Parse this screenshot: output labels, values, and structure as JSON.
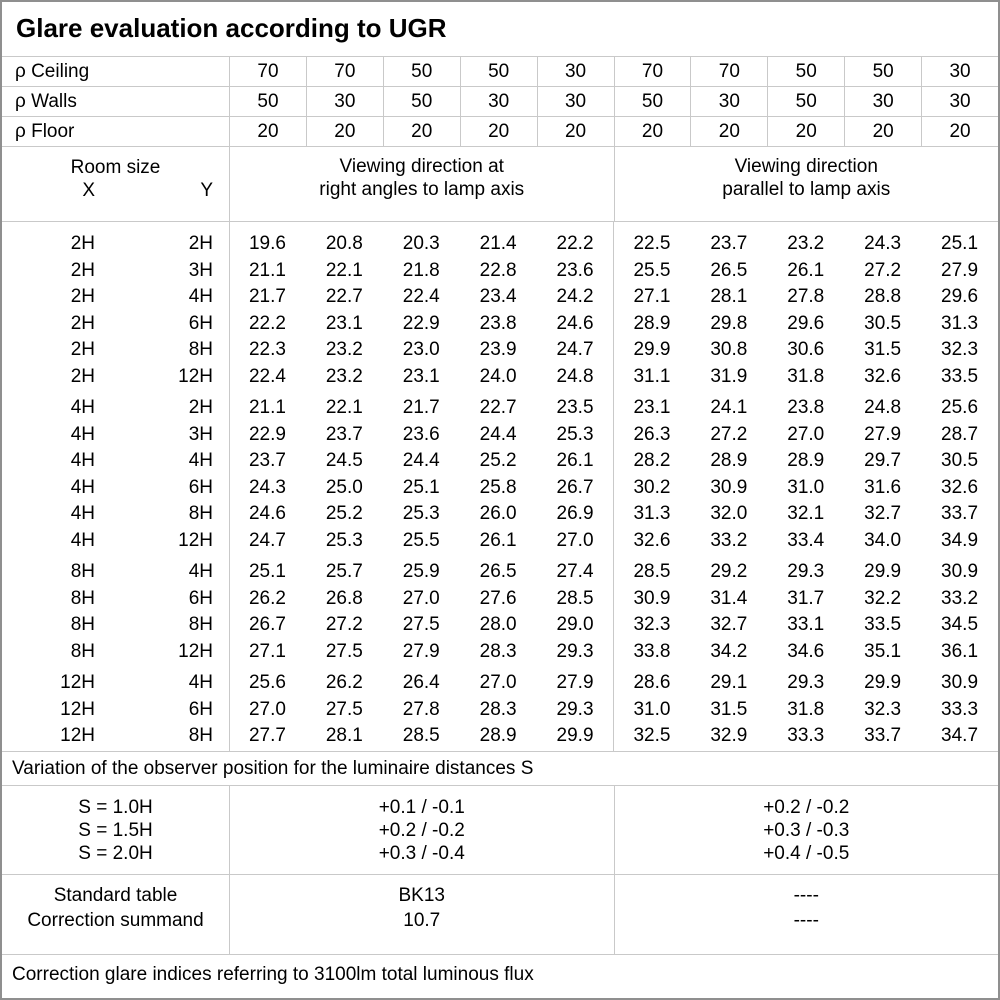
{
  "title": "Glare evaluation according to UGR",
  "reflectances": {
    "rows": [
      {
        "label": "ρ Ceiling",
        "values": [
          "70",
          "70",
          "50",
          "50",
          "30",
          "70",
          "70",
          "50",
          "50",
          "30"
        ]
      },
      {
        "label": "ρ Walls",
        "values": [
          "50",
          "30",
          "50",
          "30",
          "30",
          "50",
          "30",
          "50",
          "30",
          "30"
        ]
      },
      {
        "label": "ρ Floor",
        "values": [
          "20",
          "20",
          "20",
          "20",
          "20",
          "20",
          "20",
          "20",
          "20",
          "20"
        ]
      }
    ]
  },
  "room_size_header": {
    "title": "Room size",
    "x": "X",
    "y": "Y"
  },
  "viewing_headers": {
    "right_angles": {
      "line1": "Viewing direction at",
      "line2": "right angles to lamp axis"
    },
    "parallel": {
      "line1": "Viewing direction",
      "line2": "parallel to lamp axis"
    }
  },
  "ugr_blocks": [
    {
      "rows": [
        {
          "x": "2H",
          "y": "2H",
          "right_angles": [
            "19.6",
            "20.8",
            "20.3",
            "21.4",
            "22.2"
          ],
          "parallel": [
            "22.5",
            "23.7",
            "23.2",
            "24.3",
            "25.1"
          ]
        },
        {
          "x": "2H",
          "y": "3H",
          "right_angles": [
            "21.1",
            "22.1",
            "21.8",
            "22.8",
            "23.6"
          ],
          "parallel": [
            "25.5",
            "26.5",
            "26.1",
            "27.2",
            "27.9"
          ]
        },
        {
          "x": "2H",
          "y": "4H",
          "right_angles": [
            "21.7",
            "22.7",
            "22.4",
            "23.4",
            "24.2"
          ],
          "parallel": [
            "27.1",
            "28.1",
            "27.8",
            "28.8",
            "29.6"
          ]
        },
        {
          "x": "2H",
          "y": "6H",
          "right_angles": [
            "22.2",
            "23.1",
            "22.9",
            "23.8",
            "24.6"
          ],
          "parallel": [
            "28.9",
            "29.8",
            "29.6",
            "30.5",
            "31.3"
          ]
        },
        {
          "x": "2H",
          "y": "8H",
          "right_angles": [
            "22.3",
            "23.2",
            "23.0",
            "23.9",
            "24.7"
          ],
          "parallel": [
            "29.9",
            "30.8",
            "30.6",
            "31.5",
            "32.3"
          ]
        },
        {
          "x": "2H",
          "y": "12H",
          "right_angles": [
            "22.4",
            "23.2",
            "23.1",
            "24.0",
            "24.8"
          ],
          "parallel": [
            "31.1",
            "31.9",
            "31.8",
            "32.6",
            "33.5"
          ]
        }
      ]
    },
    {
      "rows": [
        {
          "x": "4H",
          "y": "2H",
          "right_angles": [
            "21.1",
            "22.1",
            "21.7",
            "22.7",
            "23.5"
          ],
          "parallel": [
            "23.1",
            "24.1",
            "23.8",
            "24.8",
            "25.6"
          ]
        },
        {
          "x": "4H",
          "y": "3H",
          "right_angles": [
            "22.9",
            "23.7",
            "23.6",
            "24.4",
            "25.3"
          ],
          "parallel": [
            "26.3",
            "27.2",
            "27.0",
            "27.9",
            "28.7"
          ]
        },
        {
          "x": "4H",
          "y": "4H",
          "right_angles": [
            "23.7",
            "24.5",
            "24.4",
            "25.2",
            "26.1"
          ],
          "parallel": [
            "28.2",
            "28.9",
            "28.9",
            "29.7",
            "30.5"
          ]
        },
        {
          "x": "4H",
          "y": "6H",
          "right_angles": [
            "24.3",
            "25.0",
            "25.1",
            "25.8",
            "26.7"
          ],
          "parallel": [
            "30.2",
            "30.9",
            "31.0",
            "31.6",
            "32.6"
          ]
        },
        {
          "x": "4H",
          "y": "8H",
          "right_angles": [
            "24.6",
            "25.2",
            "25.3",
            "26.0",
            "26.9"
          ],
          "parallel": [
            "31.3",
            "32.0",
            "32.1",
            "32.7",
            "33.7"
          ]
        },
        {
          "x": "4H",
          "y": "12H",
          "right_angles": [
            "24.7",
            "25.3",
            "25.5",
            "26.1",
            "27.0"
          ],
          "parallel": [
            "32.6",
            "33.2",
            "33.4",
            "34.0",
            "34.9"
          ]
        }
      ]
    },
    {
      "rows": [
        {
          "x": "8H",
          "y": "4H",
          "right_angles": [
            "25.1",
            "25.7",
            "25.9",
            "26.5",
            "27.4"
          ],
          "parallel": [
            "28.5",
            "29.2",
            "29.3",
            "29.9",
            "30.9"
          ]
        },
        {
          "x": "8H",
          "y": "6H",
          "right_angles": [
            "26.2",
            "26.8",
            "27.0",
            "27.6",
            "28.5"
          ],
          "parallel": [
            "30.9",
            "31.4",
            "31.7",
            "32.2",
            "33.2"
          ]
        },
        {
          "x": "8H",
          "y": "8H",
          "right_angles": [
            "26.7",
            "27.2",
            "27.5",
            "28.0",
            "29.0"
          ],
          "parallel": [
            "32.3",
            "32.7",
            "33.1",
            "33.5",
            "34.5"
          ]
        },
        {
          "x": "8H",
          "y": "12H",
          "right_angles": [
            "27.1",
            "27.5",
            "27.9",
            "28.3",
            "29.3"
          ],
          "parallel": [
            "33.8",
            "34.2",
            "34.6",
            "35.1",
            "36.1"
          ]
        }
      ]
    },
    {
      "rows": [
        {
          "x": "12H",
          "y": "4H",
          "right_angles": [
            "25.6",
            "26.2",
            "26.4",
            "27.0",
            "27.9"
          ],
          "parallel": [
            "28.6",
            "29.1",
            "29.3",
            "29.9",
            "30.9"
          ]
        },
        {
          "x": "12H",
          "y": "6H",
          "right_angles": [
            "27.0",
            "27.5",
            "27.8",
            "28.3",
            "29.3"
          ],
          "parallel": [
            "31.0",
            "31.5",
            "31.8",
            "32.3",
            "33.3"
          ]
        },
        {
          "x": "12H",
          "y": "8H",
          "right_angles": [
            "27.7",
            "28.1",
            "28.5",
            "28.9",
            "29.9"
          ],
          "parallel": [
            "32.5",
            "32.9",
            "33.3",
            "33.7",
            "34.7"
          ]
        }
      ]
    }
  ],
  "variation_note": "Variation of the observer position for the luminaire distances S",
  "spacing_correction": {
    "rows": [
      {
        "label": "S = 1.0H",
        "right_angles": "+0.1 / -0.1",
        "parallel": "+0.2 / -0.2"
      },
      {
        "label": "S = 1.5H",
        "right_angles": "+0.2 / -0.2",
        "parallel": "+0.3 / -0.3"
      },
      {
        "label": "S = 2.0H",
        "right_angles": "+0.3 / -0.4",
        "parallel": "+0.4 / -0.5"
      }
    ]
  },
  "summary": {
    "rows": [
      {
        "label": "Standard table",
        "right_angles": "BK13",
        "parallel": "----"
      },
      {
        "label": "Correction summand",
        "right_angles": "10.7",
        "parallel": "----"
      }
    ]
  },
  "footer_note": "Correction glare indices referring to 3100lm total luminous flux",
  "colors": {
    "grid": "#c9c9c9",
    "outer": "#8f8f8f",
    "text": "#000000",
    "background": "#ffffff"
  }
}
